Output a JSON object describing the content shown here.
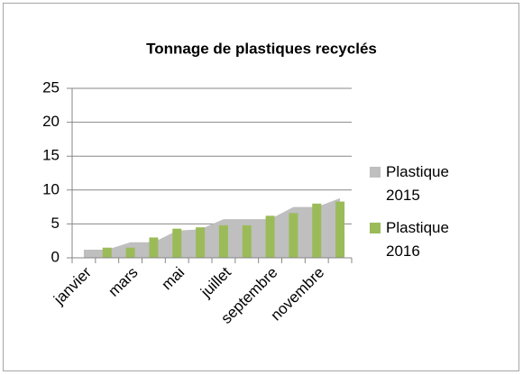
{
  "chart_data": {
    "type": "area-bar",
    "title": "Tonnage de plastiques recyclés",
    "categories": [
      "janvier",
      null,
      "mars",
      null,
      "mai",
      null,
      "juillet",
      null,
      "septembre",
      null,
      "novembre",
      null
    ],
    "series": [
      {
        "name": "Plastique 2015",
        "type": "area",
        "color": "#bfbfbf",
        "values": [
          1.2,
          1.2,
          2.3,
          2.3,
          4,
          4.2,
          5.7,
          5.7,
          5.7,
          7.5,
          7.5,
          8.8
        ]
      },
      {
        "name": "Plastique 2016",
        "type": "bar",
        "color": "#9bbb59",
        "values": [
          null,
          1.5,
          1.5,
          3,
          4.3,
          4.5,
          4.8,
          4.8,
          6.2,
          6.6,
          8,
          8.3
        ]
      }
    ],
    "ylim": [
      0,
      25
    ],
    "yticks": [
      0,
      5,
      10,
      15,
      20,
      25
    ],
    "grid": true,
    "legend": "right"
  }
}
